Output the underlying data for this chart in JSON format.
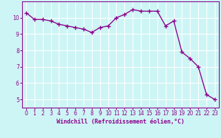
{
  "x": [
    0,
    1,
    2,
    3,
    4,
    5,
    6,
    7,
    8,
    9,
    10,
    11,
    12,
    13,
    14,
    15,
    16,
    17,
    18,
    19,
    20,
    21,
    22,
    23
  ],
  "y": [
    10.3,
    9.9,
    9.9,
    9.8,
    9.6,
    9.5,
    9.4,
    9.3,
    9.1,
    9.4,
    9.5,
    10.0,
    10.2,
    10.5,
    10.4,
    10.4,
    10.4,
    9.5,
    9.8,
    7.9,
    7.5,
    7.0,
    5.3,
    5.0
  ],
  "line_color": "#8B008B",
  "marker": "+",
  "marker_color": "#8B008B",
  "bg_color": "#cef5f5",
  "grid_color": "#ffffff",
  "xlabel": "Windchill (Refroidissement éolien,°C)",
  "xlim": [
    -0.5,
    23.5
  ],
  "ylim": [
    4.5,
    11.0
  ],
  "yticks": [
    5,
    6,
    7,
    8,
    9,
    10
  ],
  "xticks": [
    0,
    1,
    2,
    3,
    4,
    5,
    6,
    7,
    8,
    9,
    10,
    11,
    12,
    13,
    14,
    15,
    16,
    17,
    18,
    19,
    20,
    21,
    22,
    23
  ],
  "label_fontsize": 6,
  "tick_fontsize": 5.5,
  "line_width": 1.0,
  "marker_size": 4
}
